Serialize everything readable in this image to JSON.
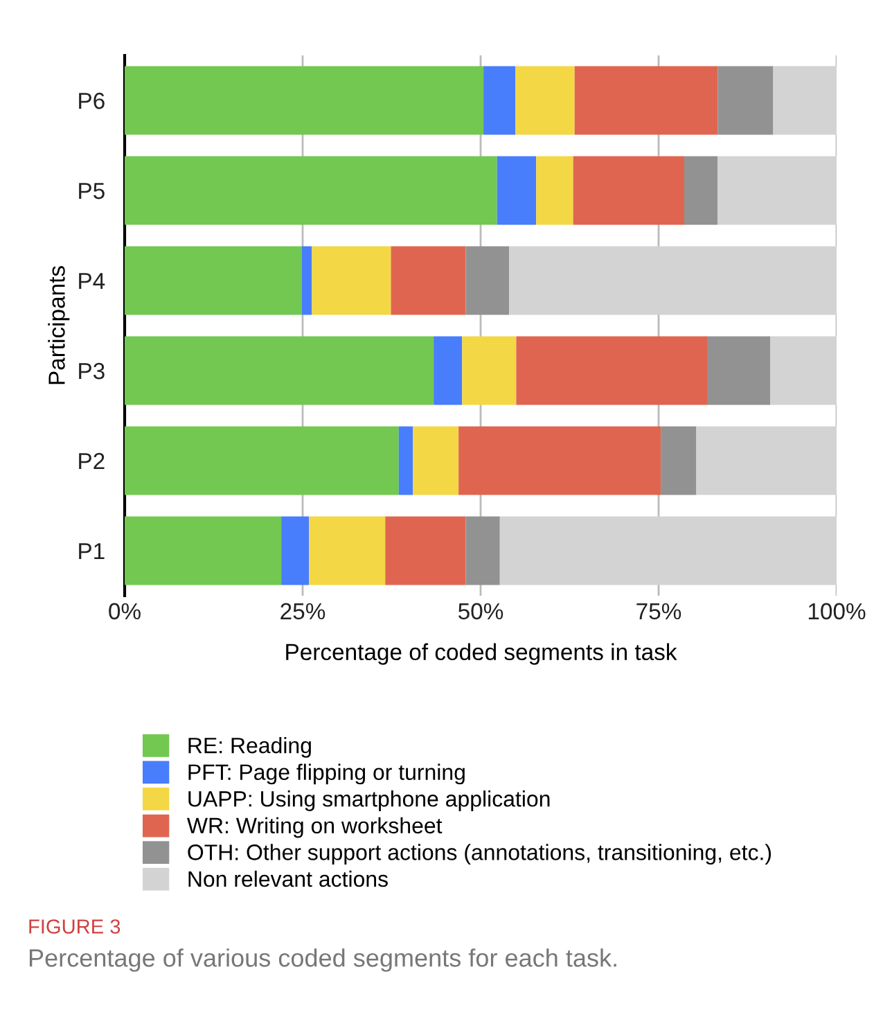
{
  "chart_data": {
    "type": "bar",
    "orientation": "horizontal",
    "stacked": true,
    "xlabel": "Percentage of coded segments in task",
    "ylabel": "Participants",
    "categories": [
      "P6",
      "P5",
      "P4",
      "P3",
      "P2",
      "P1"
    ],
    "series": [
      {
        "name": "RE: Reading",
        "color": "#72c851",
        "values": [
          50.4,
          52.3,
          24.9,
          43.4,
          38.5,
          22.0
        ]
      },
      {
        "name": "PFT: Page flipping or turning",
        "color": "#487dfb",
        "values": [
          4.5,
          5.5,
          1.4,
          4.0,
          2.0,
          3.9
        ]
      },
      {
        "name": "UAPP: Using smartphone application",
        "color": "#f4d744",
        "values": [
          8.3,
          5.2,
          11.1,
          7.6,
          6.4,
          10.7
        ]
      },
      {
        "name": "WR: Writing on worksheet",
        "color": "#e06550",
        "values": [
          20.1,
          15.6,
          10.5,
          26.9,
          28.4,
          11.3
        ]
      },
      {
        "name": "OTH: Other support actions (annotations, transitioning, etc.)",
        "color": "#929292",
        "values": [
          7.8,
          4.7,
          6.1,
          8.8,
          5.0,
          4.8
        ]
      },
      {
        "name": "Non relevant actions",
        "color": "#d3d3d3",
        "values": [
          8.9,
          16.7,
          46.0,
          9.3,
          19.7,
          47.3
        ]
      }
    ],
    "xlim": [
      0,
      100
    ],
    "xticks": [
      {
        "value": 0,
        "label": "0%"
      },
      {
        "value": 25,
        "label": "25%"
      },
      {
        "value": 50,
        "label": "50%"
      },
      {
        "value": 75,
        "label": "75%"
      },
      {
        "value": 100,
        "label": "100%"
      }
    ],
    "grid": "x",
    "legend": "bottom",
    "annotations": [
      "FIGURE 3",
      "Percentage of various coded segments for each task."
    ]
  }
}
